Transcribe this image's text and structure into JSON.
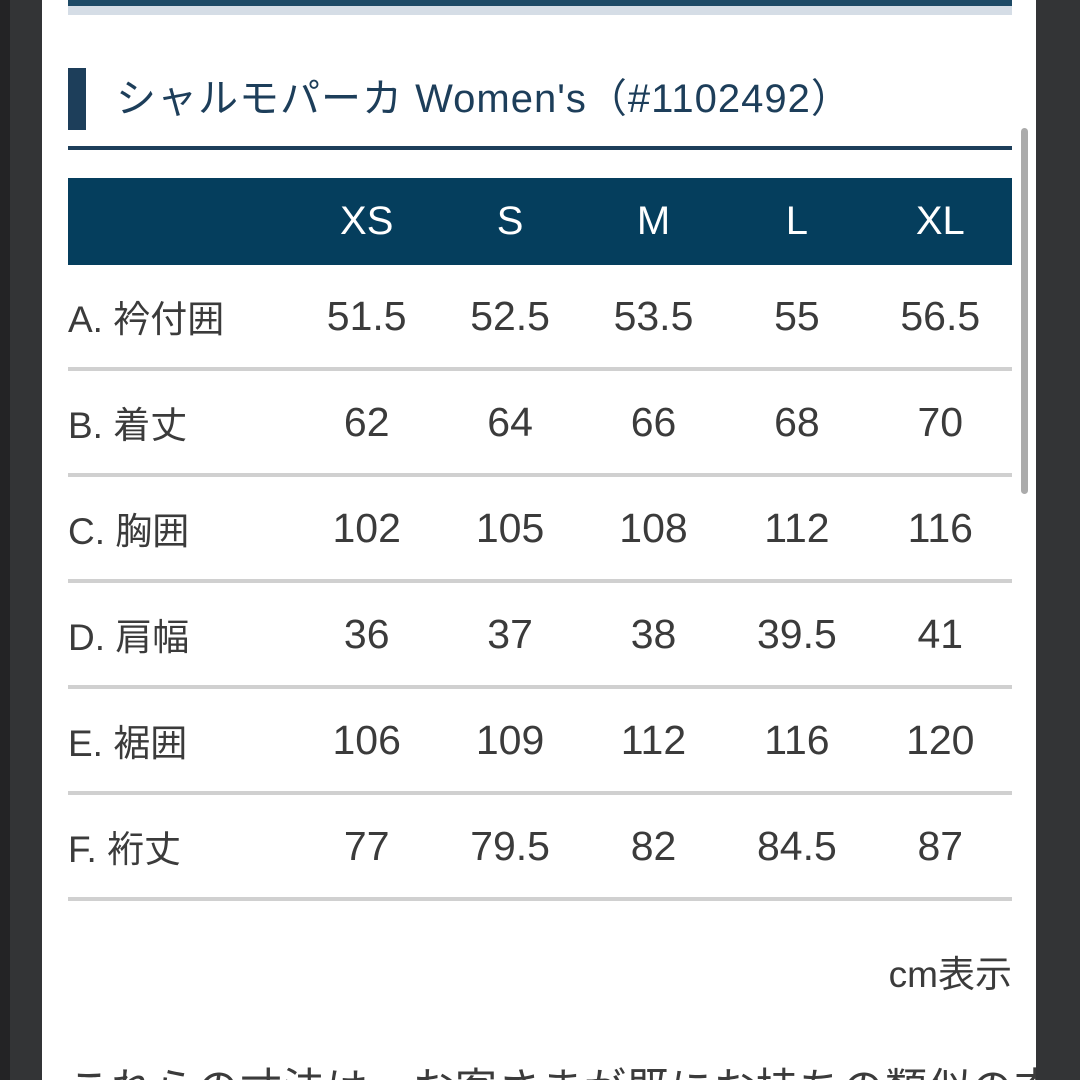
{
  "page": {
    "title": "シャルモパーカ Women's（#1102492）",
    "unit_note": "cm表示",
    "bottom_text": "これらの寸法は、お客さまが既にお持ちの類似の衣服"
  },
  "size_chart": {
    "columns": [
      "XS",
      "S",
      "M",
      "L",
      "XL"
    ],
    "rows": [
      {
        "label": "A. 衿付囲",
        "values": [
          "51.5",
          "52.5",
          "53.5",
          "55",
          "56.5"
        ]
      },
      {
        "label": "B. 着丈",
        "values": [
          "62",
          "64",
          "66",
          "68",
          "70"
        ]
      },
      {
        "label": "C. 胸囲",
        "values": [
          "102",
          "105",
          "108",
          "112",
          "116"
        ]
      },
      {
        "label": "D. 肩幅",
        "values": [
          "36",
          "37",
          "38",
          "39.5",
          "41"
        ]
      },
      {
        "label": "E. 裾囲",
        "values": [
          "106",
          "109",
          "112",
          "116",
          "120"
        ]
      },
      {
        "label": "F. 裄丈",
        "values": [
          "77",
          "79.5",
          "82",
          "84.5",
          "87"
        ]
      }
    ]
  },
  "colors": {
    "header_navy": "#053e5d",
    "title_navy": "#1d3e5a",
    "divider_gray": "#d0d0d0",
    "outer_dark": "#333436",
    "band_blue": "#d5dde6"
  }
}
